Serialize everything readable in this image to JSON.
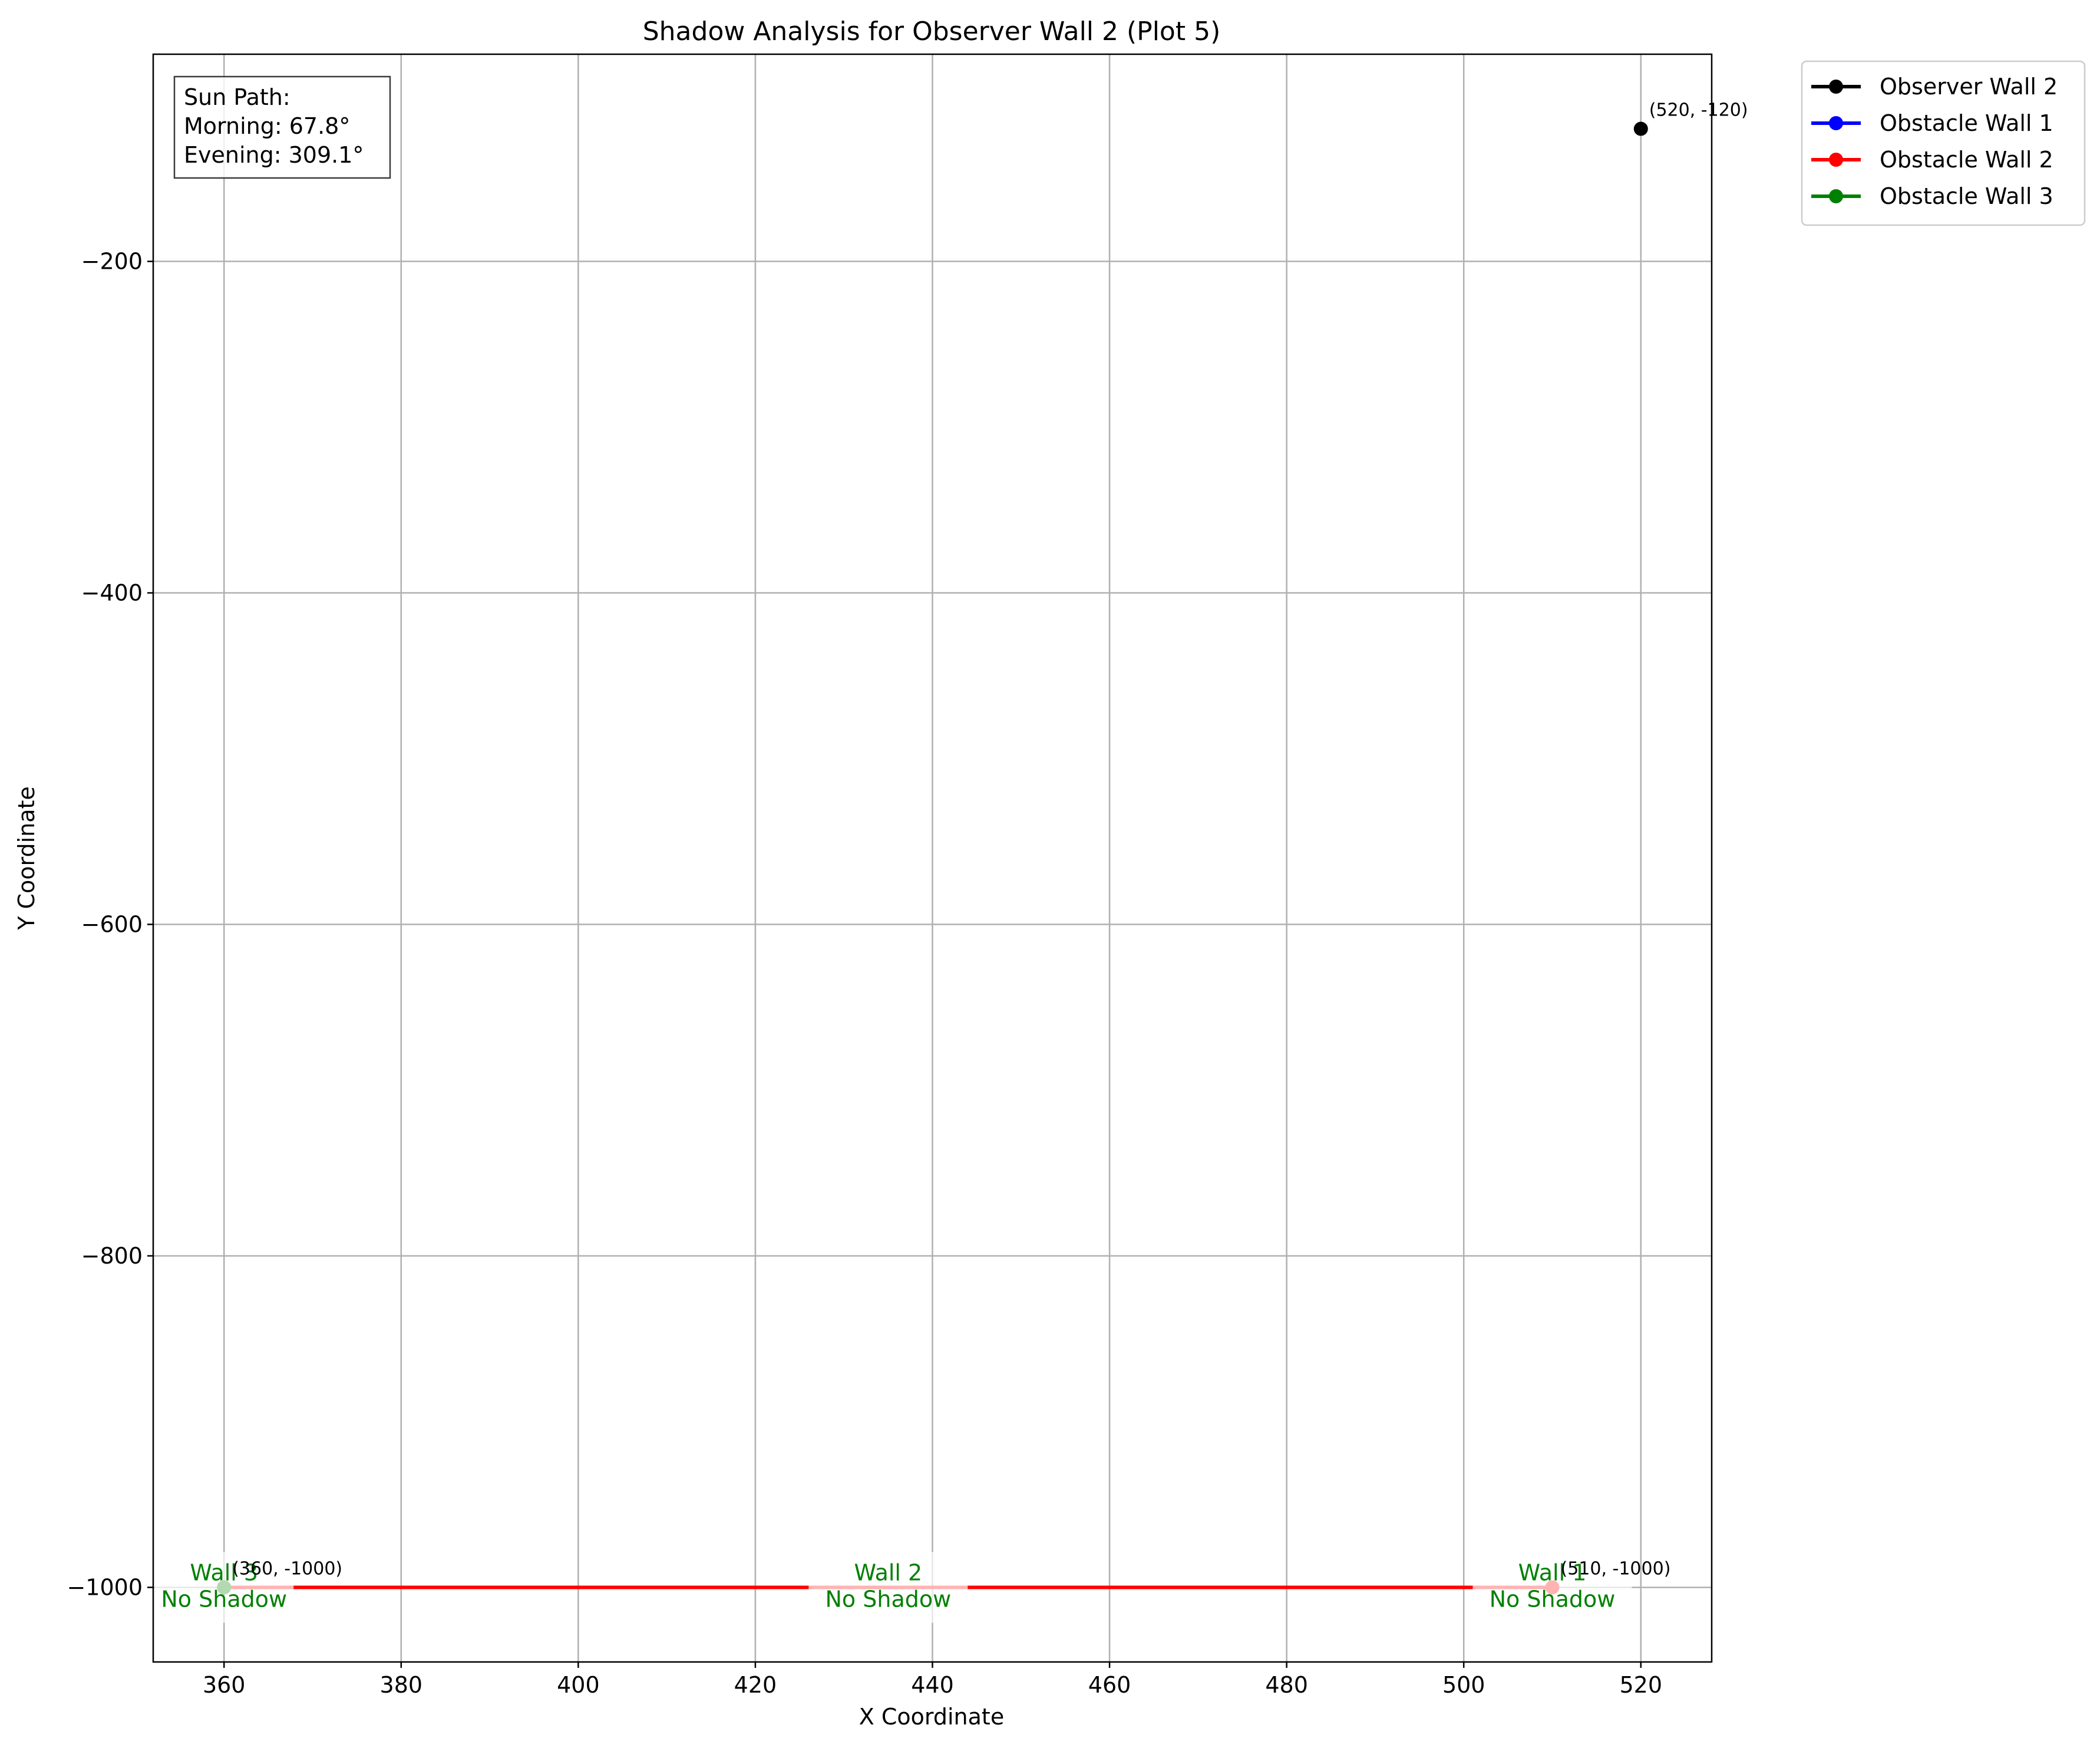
{
  "chart_data": {
    "type": "line",
    "title": "Shadow Analysis for Observer Wall 2 (Plot 5)",
    "xlabel": "X Coordinate",
    "ylabel": "Y Coordinate",
    "xlim": [
      352,
      528
    ],
    "ylim": [
      -1045,
      -75
    ],
    "xticks": [
      360,
      380,
      400,
      420,
      440,
      460,
      480,
      500,
      520
    ],
    "xtick_labels": [
      "360",
      "380",
      "400",
      "420",
      "440",
      "460",
      "480",
      "500",
      "520"
    ],
    "yticks": [
      -200,
      -400,
      -600,
      -800,
      -1000
    ],
    "ytick_labels": [
      "−200",
      "−400",
      "−600",
      "−800",
      "−1000"
    ],
    "grid": true,
    "legend_position": "outside-top-right",
    "series": [
      {
        "name": "Observer Wall 2",
        "color": "#000000",
        "points": [
          [
            520,
            -120
          ]
        ]
      },
      {
        "name": "Obstacle Wall 1",
        "color": "#0000ff",
        "points": []
      },
      {
        "name": "Obstacle Wall 2",
        "color": "#ff0000",
        "points": [
          [
            360,
            -1000
          ],
          [
            510,
            -1000
          ]
        ]
      },
      {
        "name": "Obstacle Wall 3",
        "color": "#008000",
        "points": [
          [
            360,
            -1000
          ]
        ]
      }
    ],
    "sun_path": {
      "lines": [
        "Sun Path:",
        "Morning: 67.8°",
        "Evening: 309.1°"
      ]
    },
    "point_labels": [
      {
        "x": 520,
        "y": -120,
        "text": "(520, -120)",
        "dx": 14,
        "dy": -22
      },
      {
        "x": 360,
        "y": -1000,
        "text": "(360, -1000)",
        "dx": 14,
        "dy": -22
      },
      {
        "x": 510,
        "y": -1000,
        "text": "(510, -1000)",
        "dx": 14,
        "dy": -22
      }
    ],
    "wall_labels": [
      {
        "x": 360,
        "y": -1000,
        "line1": "Wall 3",
        "line2": "No Shadow",
        "box_half_w": 118
      },
      {
        "x": 435,
        "y": -1000,
        "line1": "Wall 2",
        "line2": "No Shadow",
        "box_half_w": 135
      },
      {
        "x": 510,
        "y": -1000,
        "line1": "Wall 1",
        "line2": "No Shadow",
        "box_half_w": 135
      }
    ]
  }
}
